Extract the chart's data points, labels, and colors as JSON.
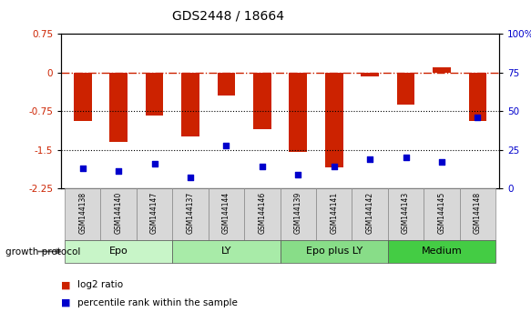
{
  "title": "GDS2448 / 18664",
  "samples": [
    "GSM144138",
    "GSM144140",
    "GSM144147",
    "GSM144137",
    "GSM144144",
    "GSM144146",
    "GSM144139",
    "GSM144141",
    "GSM144142",
    "GSM144143",
    "GSM144145",
    "GSM144148"
  ],
  "log2_ratio": [
    -0.95,
    -1.35,
    -0.83,
    -1.25,
    -0.45,
    -1.1,
    -1.55,
    -1.85,
    -0.08,
    -0.62,
    0.1,
    -0.95
  ],
  "percentile_rank": [
    13,
    11,
    16,
    7,
    28,
    14,
    9,
    14,
    19,
    20,
    17,
    46
  ],
  "groups": [
    {
      "label": "Epo",
      "indices": [
        0,
        1,
        2
      ],
      "color": "#c8f5c8"
    },
    {
      "label": "LY",
      "indices": [
        3,
        4,
        5
      ],
      "color": "#a8eba8"
    },
    {
      "label": "Epo plus LY",
      "indices": [
        6,
        7,
        8
      ],
      "color": "#88dd88"
    },
    {
      "label": "Medium",
      "indices": [
        9,
        10,
        11
      ],
      "color": "#44cc44"
    }
  ],
  "ylim_left": [
    -2.25,
    0.75
  ],
  "ylim_right": [
    0,
    100
  ],
  "yticks_left": [
    0.75,
    0.0,
    -0.75,
    -1.5,
    -2.25
  ],
  "yticks_right": [
    100,
    75,
    50,
    25,
    0
  ],
  "bar_color": "#cc2200",
  "scatter_color": "#0000cc",
  "hline_zero_color": "#cc2200",
  "hline_dotted_values": [
    -0.75,
    -1.5
  ],
  "background_color": "#ffffff",
  "bar_width": 0.5,
  "legend_items": [
    "log2 ratio",
    "percentile rank within the sample"
  ],
  "legend_colors": [
    "#cc2200",
    "#0000cc"
  ],
  "growth_protocol_label": "growth protocol"
}
